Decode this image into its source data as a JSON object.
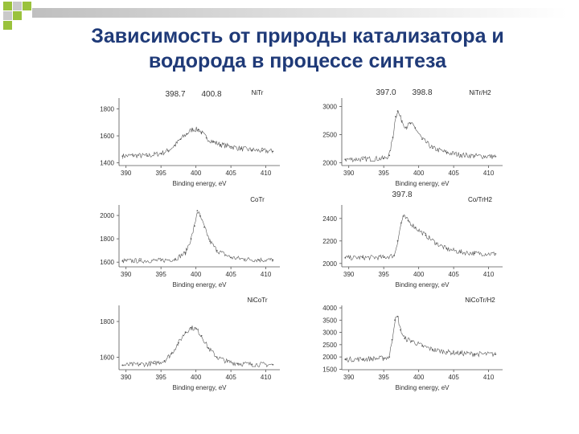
{
  "slide": {
    "title_line1": "Зависимость от природы катализатора и",
    "title_line2": "водорода в процессе синтеза",
    "accent_colors": [
      "#9ac23c",
      "#1f3a78",
      "#c9c9c9"
    ]
  },
  "chart_data": [
    {
      "type": "line",
      "label": "NiTr",
      "xlabel": "Binding energy, eV",
      "ylabel": "",
      "xticks": [
        390,
        395,
        400,
        405,
        410
      ],
      "xlim": [
        389,
        412
      ],
      "yticks": [
        1400,
        1600,
        1800
      ],
      "ylim": [
        1380,
        1880
      ],
      "annotations": [
        "398.7",
        "400.8"
      ],
      "series": [
        {
          "x": [
            389.5,
            391,
            393,
            395,
            396,
            397,
            397.8,
            398.7,
            399.5,
            400.4,
            400.8,
            401.5,
            402.5,
            403.5,
            405,
            406.5,
            408,
            409.5,
            411
          ],
          "y": [
            1450,
            1455,
            1452,
            1470,
            1490,
            1530,
            1575,
            1615,
            1650,
            1645,
            1625,
            1585,
            1555,
            1535,
            1520,
            1505,
            1495,
            1490,
            1485
          ]
        }
      ]
    },
    {
      "type": "line",
      "label": "NiTr/H2",
      "xlabel": "Binding energy, eV",
      "ylabel": "",
      "xticks": [
        390,
        395,
        400,
        405,
        410
      ],
      "xlim": [
        389,
        412
      ],
      "yticks": [
        2000,
        2500,
        3000
      ],
      "ylim": [
        1950,
        3150
      ],
      "annotations": [
        "397.0",
        "398.8"
      ],
      "series": [
        {
          "x": [
            389.5,
            392,
            395,
            395.8,
            396.3,
            396.7,
            397.0,
            397.6,
            398.2,
            398.8,
            399.5,
            400.5,
            402,
            404,
            406,
            408,
            411
          ],
          "y": [
            2060,
            2065,
            2075,
            2130,
            2450,
            2820,
            2920,
            2740,
            2630,
            2700,
            2620,
            2420,
            2260,
            2180,
            2140,
            2120,
            2110
          ]
        }
      ]
    },
    {
      "type": "line",
      "label": "CoTr",
      "xlabel": "Binding energy, eV",
      "ylabel": "",
      "xticks": [
        390,
        395,
        400,
        405,
        410
      ],
      "xlim": [
        389,
        412
      ],
      "yticks": [
        1600,
        1800,
        2000
      ],
      "ylim": [
        1560,
        2090
      ],
      "annotations": [],
      "series": [
        {
          "x": [
            389.5,
            392,
            395,
            397,
            398.5,
            399.3,
            399.8,
            400.2,
            400.6,
            401.2,
            402,
            403,
            405,
            407,
            409,
            411
          ],
          "y": [
            1610,
            1612,
            1615,
            1625,
            1680,
            1800,
            1910,
            2040,
            1995,
            1900,
            1780,
            1700,
            1640,
            1625,
            1620,
            1618
          ]
        }
      ]
    },
    {
      "type": "line",
      "label": "Co/TrH2",
      "xlabel": "Binding energy, eV",
      "ylabel": "",
      "xticks": [
        390,
        395,
        400,
        405,
        410
      ],
      "xlim": [
        389,
        412
      ],
      "yticks": [
        2000,
        2200,
        2400
      ],
      "ylim": [
        1970,
        2520
      ],
      "annotations": [
        "397.8"
      ],
      "series": [
        {
          "x": [
            389.5,
            392,
            395,
            396.5,
            397.0,
            397.5,
            397.8,
            398.5,
            399.5,
            401,
            402.5,
            404,
            406,
            408,
            411
          ],
          "y": [
            2050,
            2052,
            2055,
            2070,
            2200,
            2360,
            2420,
            2380,
            2320,
            2250,
            2180,
            2130,
            2100,
            2090,
            2085
          ]
        }
      ]
    },
    {
      "type": "line",
      "label": "NiCoTr",
      "xlabel": "Binding energy, eV",
      "ylabel": "",
      "xticks": [
        390,
        395,
        400,
        405,
        410
      ],
      "xlim": [
        389,
        412
      ],
      "yticks": [
        1600,
        1800
      ],
      "ylim": [
        1530,
        1890
      ],
      "annotations": [],
      "series": [
        {
          "x": [
            389.5,
            392,
            394,
            395.5,
            396.5,
            397.5,
            398.5,
            399.3,
            400,
            400.8,
            401.8,
            403,
            404.5,
            406,
            408,
            411
          ],
          "y": [
            1555,
            1560,
            1565,
            1580,
            1620,
            1680,
            1740,
            1765,
            1760,
            1720,
            1650,
            1600,
            1575,
            1565,
            1560,
            1558
          ]
        }
      ]
    },
    {
      "type": "line",
      "label": "NiCoTr/H2",
      "xlabel": "Binding energy, eV",
      "ylabel": "",
      "xticks": [
        390,
        395,
        400,
        405,
        410
      ],
      "xlim": [
        389,
        412
      ],
      "yticks": [
        1500,
        2000,
        2500,
        3000,
        3500,
        4000
      ],
      "ylim": [
        1480,
        4100
      ],
      "annotations": [],
      "series": [
        {
          "x": [
            389.5,
            392,
            395,
            395.8,
            396.2,
            396.6,
            397.0,
            397.4,
            398,
            399,
            400.5,
            402,
            404,
            406,
            408,
            411
          ],
          "y": [
            1900,
            1910,
            1950,
            2000,
            2700,
            3500,
            3650,
            3100,
            2750,
            2650,
            2450,
            2300,
            2200,
            2150,
            2120,
            2110
          ]
        }
      ]
    }
  ]
}
